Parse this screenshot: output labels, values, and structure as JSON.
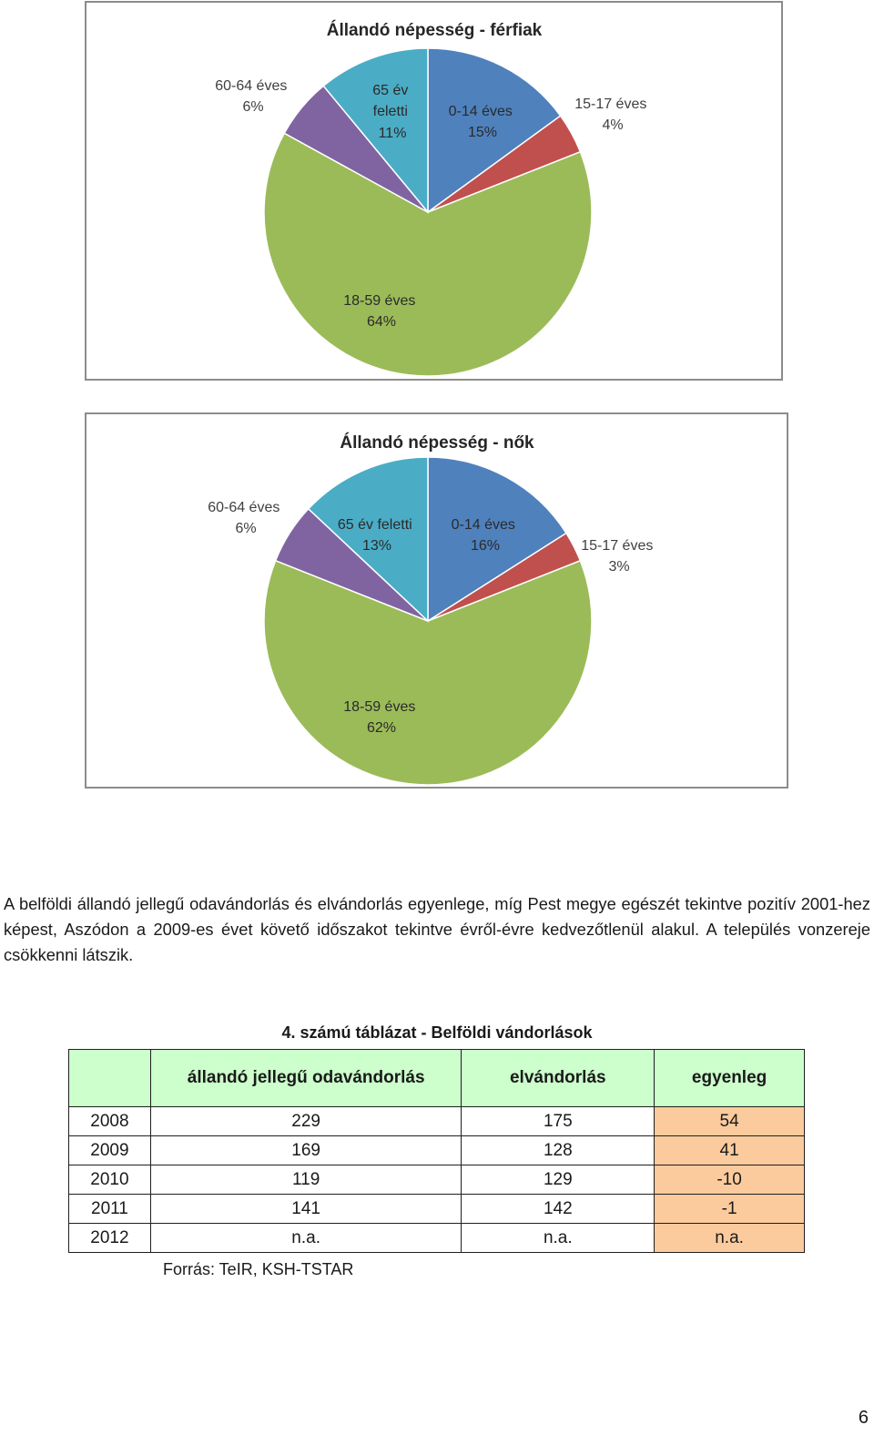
{
  "chart_data": [
    {
      "type": "pie",
      "title": "Állandó népesség - férfiak",
      "slices": [
        {
          "label": "0-14 éves",
          "percent_label": "15%",
          "value": 15,
          "color": "#4f81bd"
        },
        {
          "label": "15-17 éves",
          "percent_label": "4%",
          "value": 4,
          "color": "#c0504d"
        },
        {
          "label": "18-59 éves",
          "percent_label": "64%",
          "value": 64,
          "color": "#9bbb59"
        },
        {
          "label": "60-64 éves",
          "percent_label": "6%",
          "value": 6,
          "color": "#8064a2"
        },
        {
          "label_lines": [
            "65 év",
            "feletti"
          ],
          "label": "65 év feletti",
          "percent_label": "11%",
          "value": 11,
          "color": "#4bacc6"
        }
      ]
    },
    {
      "type": "pie",
      "title": "Állandó népesség - nők",
      "slices": [
        {
          "label": "0-14 éves",
          "percent_label": "16%",
          "value": 16,
          "color": "#4f81bd"
        },
        {
          "label": "15-17 éves",
          "percent_label": "3%",
          "value": 3,
          "color": "#c0504d"
        },
        {
          "label": "18-59 éves",
          "percent_label": "62%",
          "value": 62,
          "color": "#9bbb59"
        },
        {
          "label": "60-64 éves",
          "percent_label": "6%",
          "value": 6,
          "color": "#8064a2"
        },
        {
          "label": "65 év feletti",
          "percent_label": "13%",
          "value": 13,
          "color": "#4bacc6"
        }
      ]
    }
  ],
  "paragraph": "A belföldi állandó jellegű odavándorlás és elvándorlás egyenlege, míg Pest megye egészét tekintve pozitív 2001-hez képest, Aszódon a 2009-es évet követő időszakot tekintve évről-évre kedvezőtlenül alakul. A település vonzereje csökkenni látszik.",
  "table": {
    "caption": "4. számú táblázat - Belföldi vándorlások",
    "headers": [
      "",
      "állandó jellegű odavándorlás",
      "elvándorlás",
      "egyenleg"
    ],
    "rows": [
      [
        "2008",
        "229",
        "175",
        "54"
      ],
      [
        "2009",
        "169",
        "128",
        "41"
      ],
      [
        "2010",
        "119",
        "129",
        "-10"
      ],
      [
        "2011",
        "141",
        "142",
        "-1"
      ],
      [
        "2012",
        "n.a.",
        "n.a.",
        "n.a."
      ]
    ],
    "header_color": "#ccffcc",
    "balance_color": "#fbcb9d"
  },
  "source": "Forrás: TeIR, KSH-TSTAR",
  "page_number": "6"
}
